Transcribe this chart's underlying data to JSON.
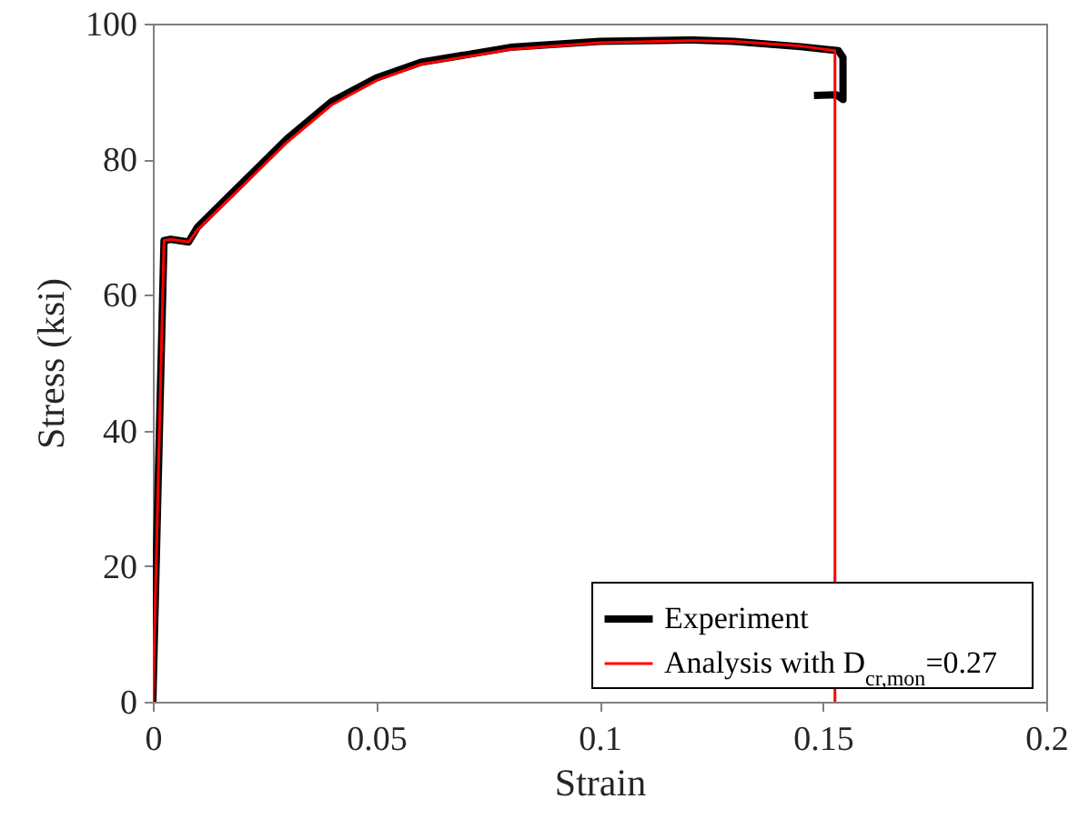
{
  "chart_data": {
    "type": "line",
    "xlabel": "Strain",
    "ylabel": "Stress (ksi)",
    "xlim": [
      0,
      0.2
    ],
    "xticks": [
      0,
      0.05,
      0.1,
      0.15,
      0.2
    ],
    "ylim": [
      0,
      100
    ],
    "yticks": [
      0,
      20,
      40,
      60,
      80,
      100
    ],
    "legend": "bottom right",
    "grid": false,
    "marker": "none",
    "line_style": "solid",
    "series": [
      {
        "name": "Experiment",
        "color": "#000000",
        "x": [
          0,
          0.0025,
          0.004,
          0.008,
          0.01,
          0.02,
          0.03,
          0.04,
          0.05,
          0.06,
          0.08,
          0.1,
          0.12,
          0.13,
          0.145,
          0.1535,
          0.1545,
          0.1545,
          0.153,
          0.148
        ],
        "values": [
          0,
          68,
          68.2,
          67.8,
          70,
          76.5,
          83,
          88.5,
          92,
          94.3,
          96.5,
          97.4,
          97.6,
          97.4,
          96.6,
          96,
          95,
          88.8,
          89.5,
          89.4
        ]
      },
      {
        "name": "Analysis with D$_{cr,mon}$=0.27",
        "color": "#ff0000",
        "x": [
          0,
          0.0025,
          0.004,
          0.008,
          0.01,
          0.02,
          0.03,
          0.04,
          0.05,
          0.06,
          0.08,
          0.1,
          0.12,
          0.13,
          0.145,
          0.1527,
          0.1527
        ],
        "values": [
          0,
          68,
          68.2,
          67.8,
          69.6,
          76,
          82.5,
          88,
          91.6,
          94,
          96.2,
          97.2,
          97.5,
          97.4,
          96.7,
          96,
          0
        ]
      }
    ]
  }
}
